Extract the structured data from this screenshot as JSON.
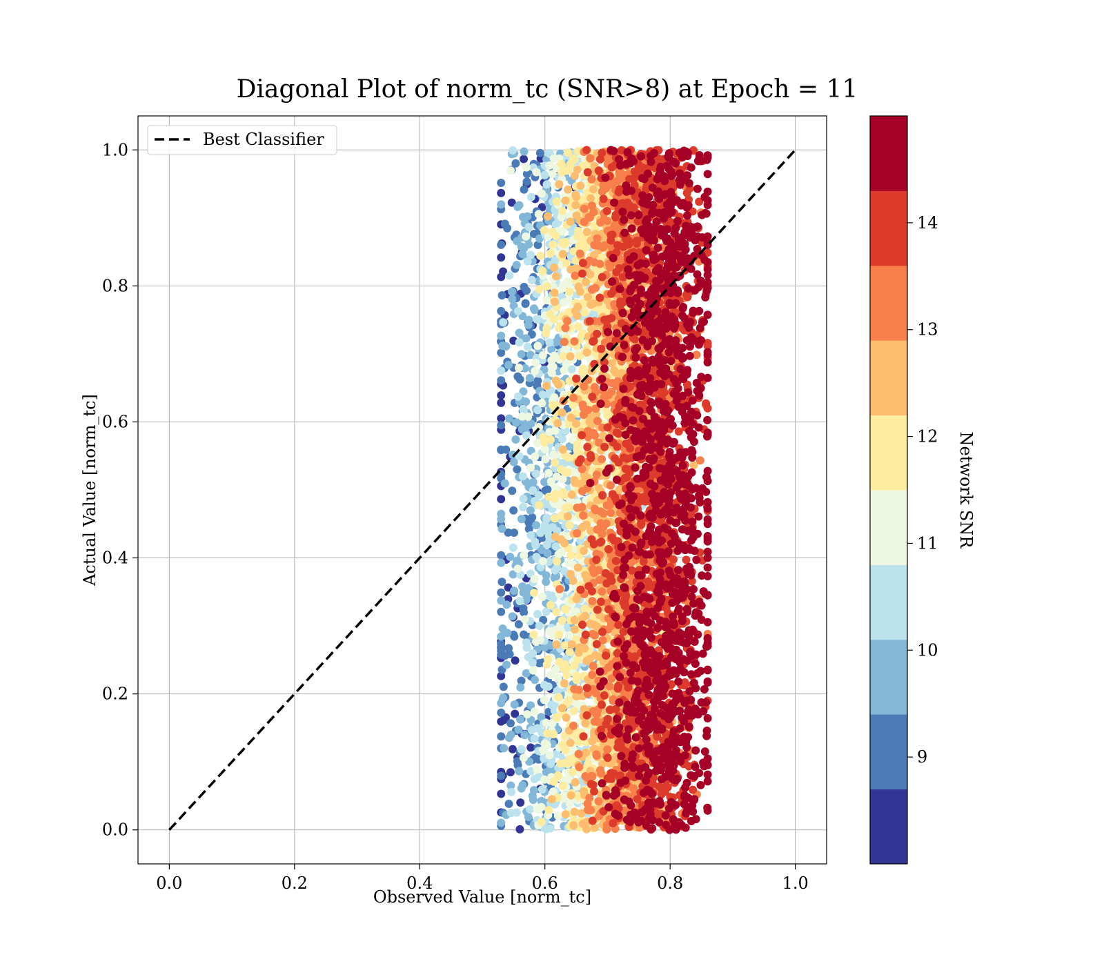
{
  "chart_data": {
    "type": "scatter",
    "title": "Diagonal Plot of norm_tc (SNR>8) at Epoch = 11",
    "xlabel": "Observed Value [norm_tc]",
    "ylabel": "Actual Value [norm_tc]",
    "xlim": [
      -0.05,
      1.05
    ],
    "ylim": [
      -0.05,
      1.05
    ],
    "xticks": [
      "0.0",
      "0.2",
      "0.4",
      "0.6",
      "0.8",
      "1.0"
    ],
    "yticks": [
      "0.0",
      "0.2",
      "0.4",
      "0.6",
      "0.8",
      "1.0"
    ],
    "grid": true,
    "legend": {
      "placement": "top-left",
      "entries": [
        "Best Classifier"
      ]
    },
    "reference_line": {
      "name": "Best Classifier",
      "style": "dashed",
      "color": "#000000",
      "x": [
        0.0,
        1.0
      ],
      "y": [
        0.0,
        1.0
      ]
    },
    "scatter_summary": {
      "x_range": [
        0.53,
        0.86
      ],
      "y_range": [
        0.0,
        1.0
      ],
      "color_by": "Network SNR",
      "trend": "higher SNR points cluster at larger observed values (0.72-0.84); lower SNR points near 0.55-0.65"
    },
    "colorbar": {
      "label": "Network SNR",
      "range": [
        8,
        15
      ],
      "ticks": [
        "9",
        "10",
        "11",
        "12",
        "13",
        "14"
      ],
      "tick_values": [
        9,
        10,
        11,
        12,
        13,
        14
      ],
      "colors": [
        "#313695",
        "#4a7bb7",
        "#82b7d8",
        "#bce2ee",
        "#eef7e0",
        "#fdeca0",
        "#fdbd6f",
        "#f67f4b",
        "#dc3b2c",
        "#a50026"
      ]
    }
  }
}
